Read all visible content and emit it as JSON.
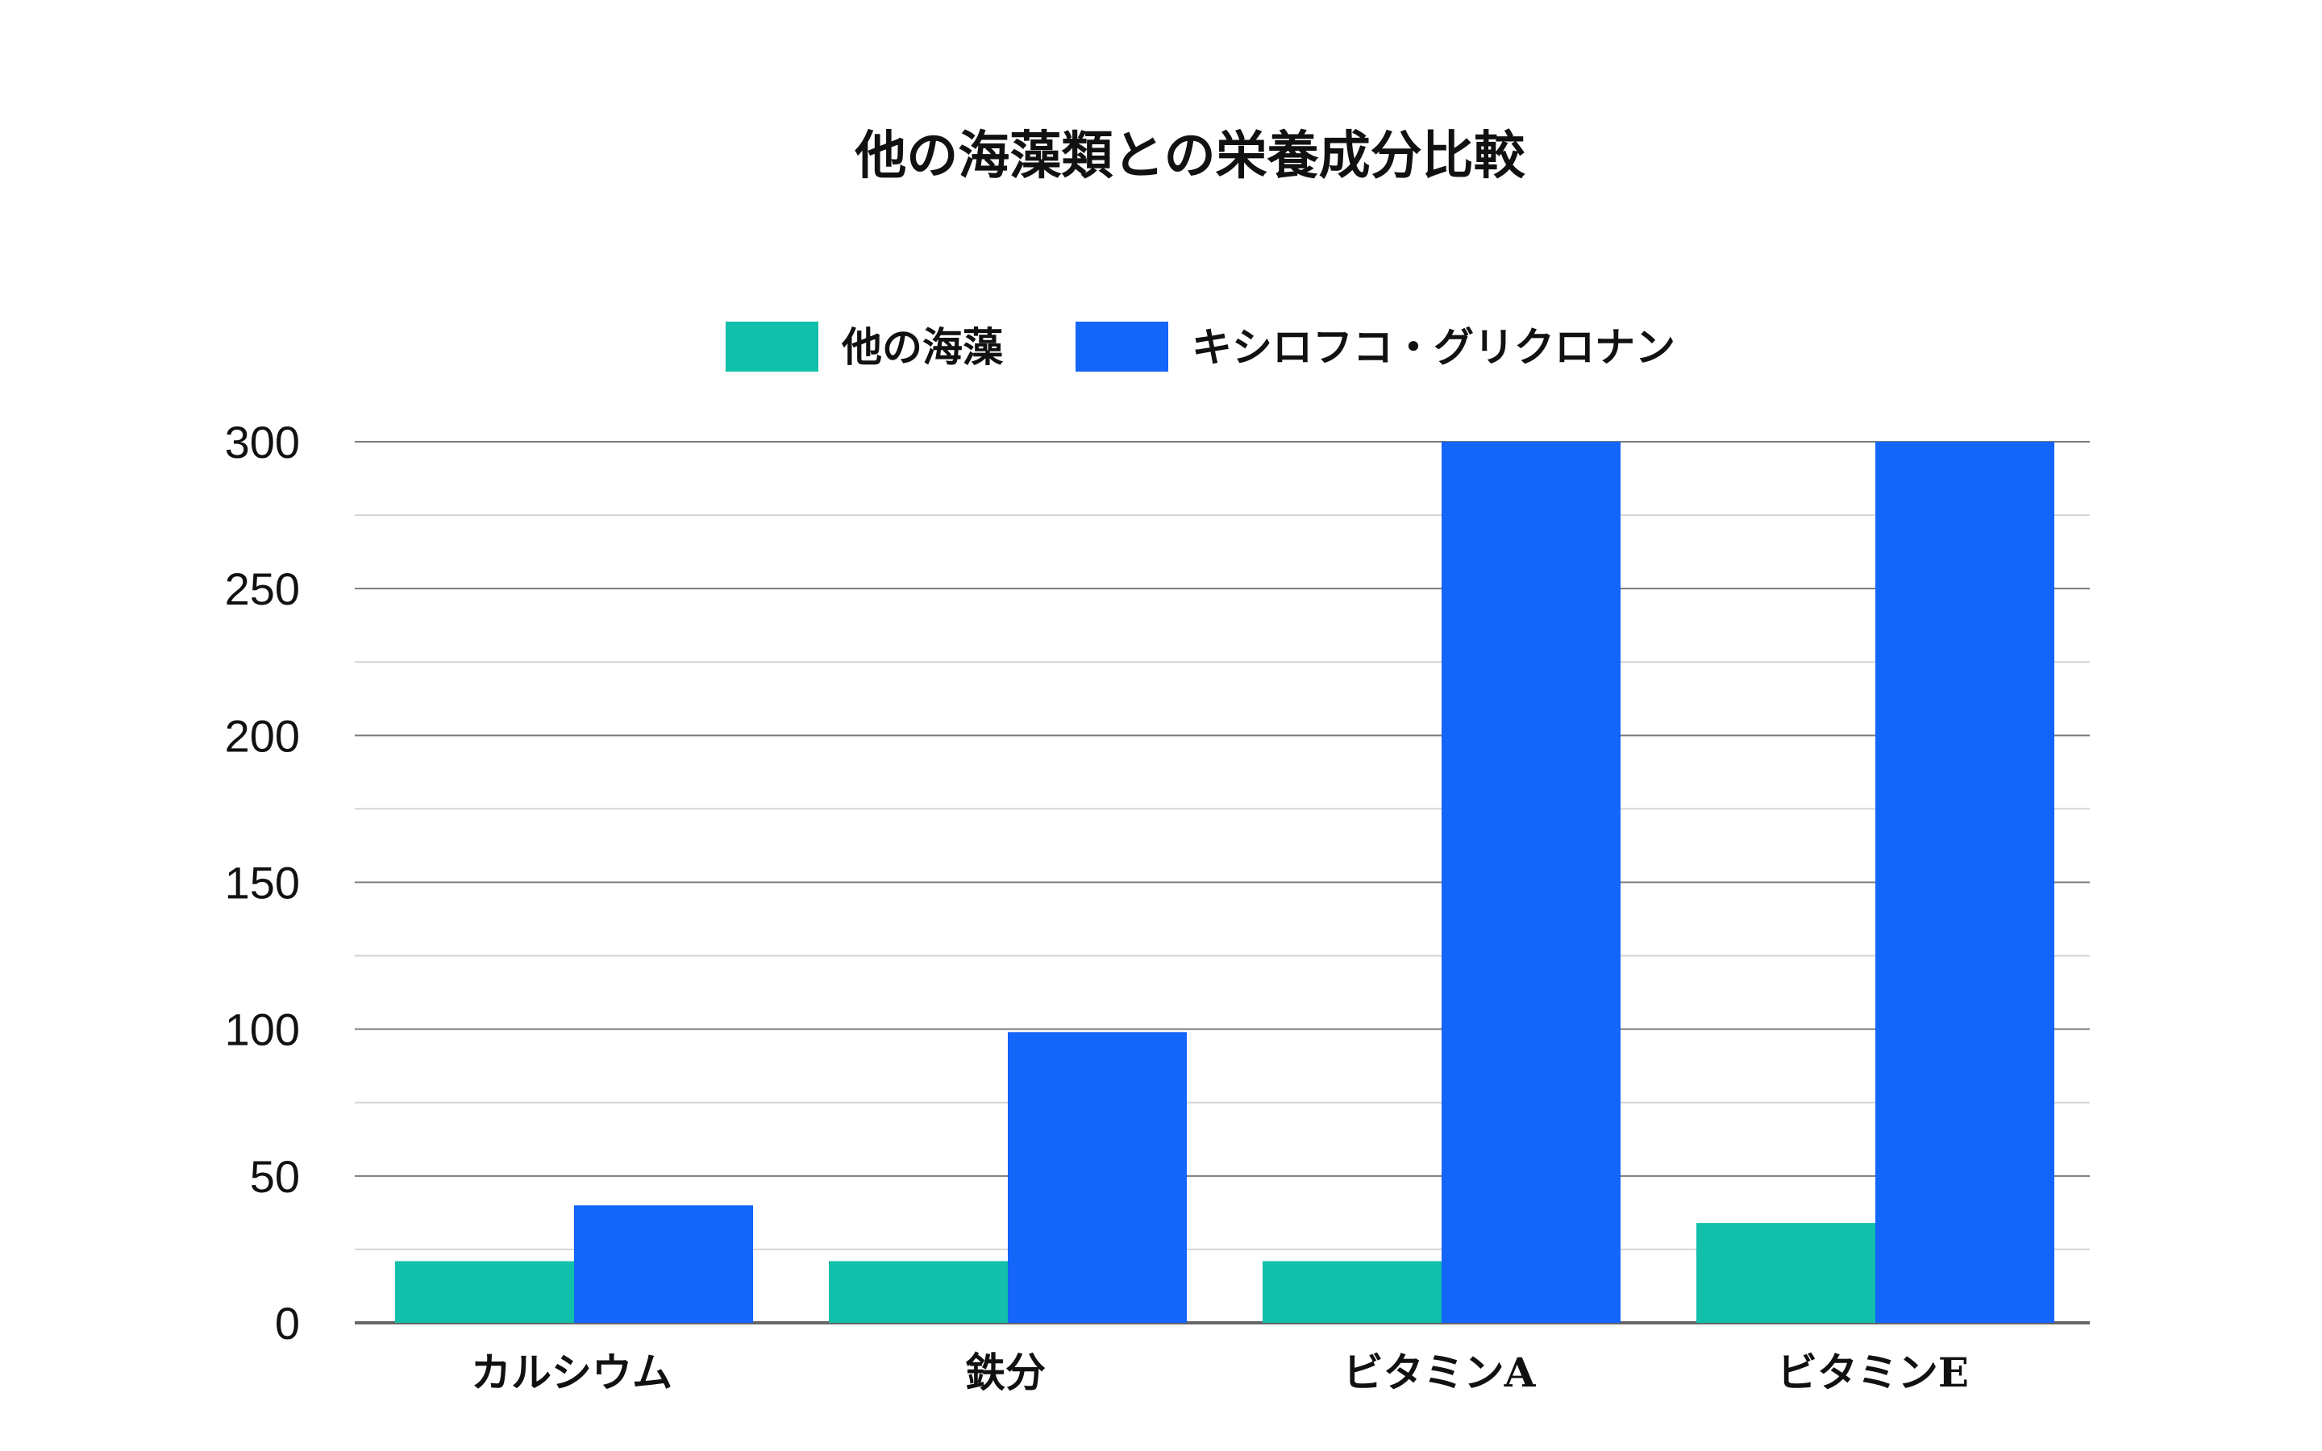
{
  "chart_data": {
    "type": "bar",
    "title": "他の海藻類との栄養成分比較",
    "categories": [
      "カルシウム",
      "鉄分",
      "ビタミンA",
      "ビタミンE"
    ],
    "series": [
      {
        "name": "他の海藻",
        "values": [
          21,
          21,
          21,
          34
        ],
        "color": "#12bfaa"
      },
      {
        "name": "キシロフコ・グリクロナン",
        "values": [
          40,
          99,
          300,
          300
        ],
        "color": "#1465fa"
      }
    ],
    "ylim": [
      0,
      300
    ],
    "yticks": [
      0,
      50,
      100,
      150,
      200,
      250,
      300
    ],
    "xlabel": "",
    "ylabel": "",
    "grid": true,
    "legend_position": "top-center"
  }
}
